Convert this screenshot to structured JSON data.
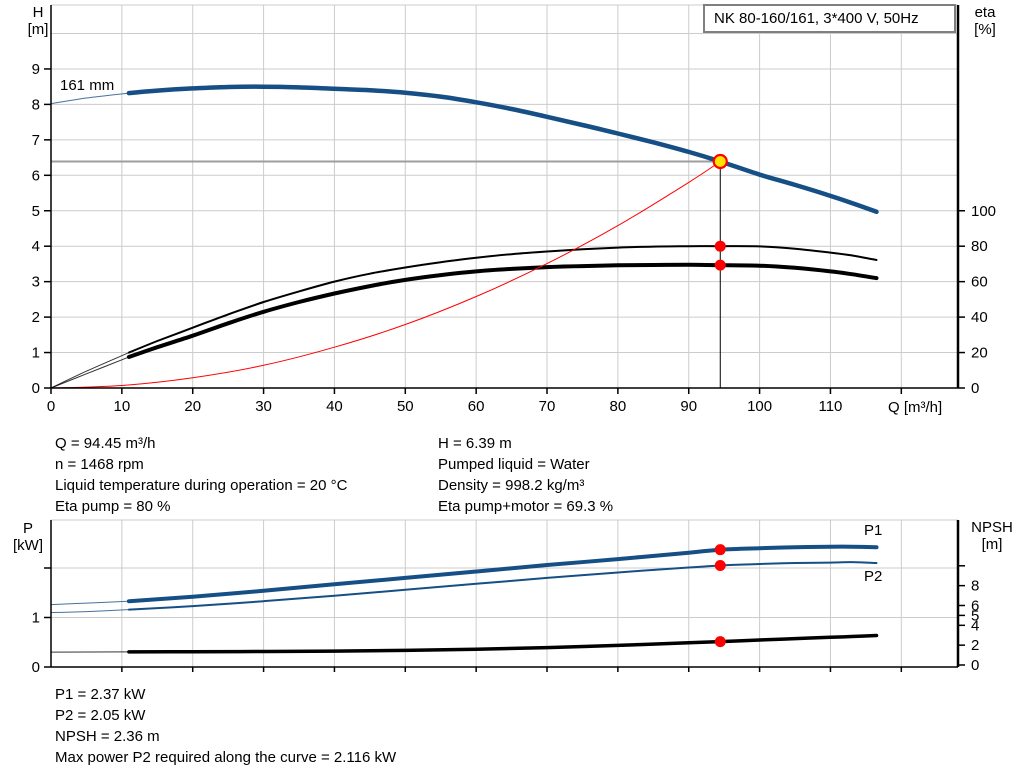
{
  "colors": {
    "curve_blue": "#164f85",
    "curve_black": "#000000",
    "red": "#ff0000",
    "duty_yellow": "#ffe400",
    "grid": "#cccccc",
    "duty_line_gray": "#9e9e9e",
    "axis": "#000000",
    "box_border": "#7f7f7f"
  },
  "top_info": {
    "left": [
      "Q = 94.45 m³/h",
      "n = 1468 rpm",
      "Liquid temperature during operation = 20 °C",
      "Eta pump = 80 %"
    ],
    "right": [
      "H = 6.39 m",
      "Pumped liquid = Water",
      "Density = 998.2 kg/m³",
      "Eta pump+motor = 69.3 %"
    ]
  },
  "bottom_info": [
    "P1 = 2.37 kW",
    "P2 = 2.05 kW",
    "NPSH = 2.36 m",
    "Max power P2 required along the curve = 2.116 kW"
  ],
  "chart_data": [
    {
      "type": "line",
      "title": "NK 80-160/161, 3*400 V, 50Hz",
      "impeller_label": "161 mm",
      "axes": {
        "x": {
          "label": "Q [m³/h]",
          "min": 0,
          "max": 128,
          "ticks": [
            0,
            10,
            20,
            30,
            40,
            50,
            60,
            70,
            80,
            90,
            100,
            110
          ],
          "unlabeled_ticks": [
            120
          ],
          "grid": [
            10,
            20,
            30,
            40,
            50,
            60,
            70,
            80,
            90,
            100,
            110,
            120
          ]
        },
        "y_left": {
          "label_lines": [
            "H",
            "[m]"
          ],
          "min": 0,
          "max": 10.8,
          "ticks": [
            0,
            1,
            2,
            3,
            4,
            5,
            6,
            7,
            8,
            9
          ],
          "grid": [
            1,
            2,
            3,
            4,
            5,
            6,
            7,
            8,
            9,
            10
          ]
        },
        "y_right": {
          "label_lines": [
            "eta",
            "[%]"
          ],
          "min": 0,
          "max": 216,
          "ticks": [
            0,
            20,
            40,
            60,
            80,
            100
          ]
        }
      },
      "series": [
        {
          "name": "qh-curve",
          "axis": "left",
          "color_key": "curve_blue",
          "width": 4.5,
          "thin_until": 11,
          "points": [
            [
              0,
              8.02
            ],
            [
              5,
              8.18
            ],
            [
              11,
              8.32
            ],
            [
              15,
              8.39
            ],
            [
              20,
              8.45
            ],
            [
              25,
              8.49
            ],
            [
              30,
              8.5
            ],
            [
              35,
              8.48
            ],
            [
              40,
              8.44
            ],
            [
              45,
              8.4
            ],
            [
              50,
              8.33
            ],
            [
              55,
              8.22
            ],
            [
              60,
              8.06
            ],
            [
              65,
              7.87
            ],
            [
              70,
              7.65
            ],
            [
              75,
              7.42
            ],
            [
              80,
              7.18
            ],
            [
              85,
              6.93
            ],
            [
              90,
              6.66
            ],
            [
              94.45,
              6.39
            ],
            [
              100,
              6.02
            ],
            [
              105,
              5.73
            ],
            [
              110,
              5.42
            ],
            [
              113,
              5.22
            ],
            [
              116.5,
              4.97
            ]
          ]
        },
        {
          "name": "eta-pump-curve",
          "axis": "right",
          "color_key": "curve_black",
          "width": 2,
          "thin_until": 11,
          "points": [
            [
              0,
              0
            ],
            [
              5,
              9.5
            ],
            [
              11,
              20
            ],
            [
              15,
              26.5
            ],
            [
              20,
              34
            ],
            [
              25,
              41.5
            ],
            [
              30,
              48.5
            ],
            [
              35,
              54.5
            ],
            [
              40,
              60
            ],
            [
              45,
              64.5
            ],
            [
              50,
              68
            ],
            [
              55,
              71
            ],
            [
              60,
              73.5
            ],
            [
              65,
              75.5
            ],
            [
              70,
              77
            ],
            [
              75,
              78.3
            ],
            [
              80,
              79.2
            ],
            [
              85,
              79.8
            ],
            [
              90,
              80
            ],
            [
              94.45,
              80
            ],
            [
              100,
              79.9
            ],
            [
              105,
              78.6
            ],
            [
              110,
              76.4
            ],
            [
              113,
              74.8
            ],
            [
              116.5,
              72.2
            ]
          ]
        },
        {
          "name": "eta-pump-motor-curve",
          "axis": "right",
          "color_key": "curve_black",
          "width": 4,
          "thin_until": 11,
          "points": [
            [
              0,
              0
            ],
            [
              5,
              8
            ],
            [
              11,
              17.5
            ],
            [
              15,
              23
            ],
            [
              20,
              29.5
            ],
            [
              25,
              36.5
            ],
            [
              30,
              43
            ],
            [
              35,
              48.5
            ],
            [
              40,
              53.3
            ],
            [
              45,
              57.5
            ],
            [
              50,
              61
            ],
            [
              55,
              63.7
            ],
            [
              60,
              65.8
            ],
            [
              65,
              67.2
            ],
            [
              70,
              68.2
            ],
            [
              75,
              68.8
            ],
            [
              80,
              69.2
            ],
            [
              85,
              69.4
            ],
            [
              90,
              69.5
            ],
            [
              94.45,
              69.3
            ],
            [
              100,
              69
            ],
            [
              105,
              67.8
            ],
            [
              110,
              65.8
            ],
            [
              113,
              64.2
            ],
            [
              116.5,
              62
            ]
          ]
        },
        {
          "name": "system-curve",
          "axis": "left",
          "color_key": "red",
          "width": 1,
          "thin_until": null,
          "points": [
            [
              0,
              0
            ],
            [
              10,
              0.07
            ],
            [
              20,
              0.29
            ],
            [
              30,
              0.64
            ],
            [
              40,
              1.15
            ],
            [
              50,
              1.79
            ],
            [
              60,
              2.58
            ],
            [
              70,
              3.51
            ],
            [
              80,
              4.58
            ],
            [
              90,
              5.8
            ],
            [
              94.45,
              6.39
            ]
          ]
        }
      ],
      "duty_point": {
        "q": 94.45,
        "h": 6.39,
        "eta_pump": 80,
        "eta_pump_motor": 69.3
      }
    },
    {
      "type": "line",
      "axes": {
        "x": {
          "min": 0,
          "max": 128,
          "grid": [
            10,
            20,
            30,
            40,
            50,
            60,
            70,
            80,
            90,
            100,
            110,
            120
          ],
          "ticks_small": [
            10,
            20,
            30,
            40,
            50,
            60,
            70,
            80,
            90,
            100,
            110,
            120
          ]
        },
        "y_left": {
          "label_lines": [
            "P",
            "[kW]"
          ],
          "min": 0,
          "max": 2.97,
          "ticks": [
            0,
            1
          ],
          "unlabeled_ticks": [
            2
          ],
          "grid": [
            1,
            2
          ]
        },
        "y_right": {
          "label_lines": [
            "NPSH",
            "[m]"
          ],
          "min": 0,
          "max": 14.6,
          "ticks": [
            0,
            2,
            4,
            5,
            6,
            8
          ],
          "unlabeled_ticks": [
            10
          ]
        }
      },
      "series": [
        {
          "name": "p1-curve",
          "label": "P1",
          "axis": "left",
          "color_key": "curve_blue",
          "width": 4,
          "thin_until": 11,
          "points": [
            [
              0,
              1.26
            ],
            [
              5,
              1.29
            ],
            [
              11,
              1.33
            ],
            [
              20,
              1.42
            ],
            [
              30,
              1.54
            ],
            [
              40,
              1.67
            ],
            [
              50,
              1.8
            ],
            [
              60,
              1.93
            ],
            [
              70,
              2.06
            ],
            [
              80,
              2.18
            ],
            [
              90,
              2.31
            ],
            [
              94.45,
              2.37
            ],
            [
              100,
              2.4
            ],
            [
              105,
              2.42
            ],
            [
              110,
              2.43
            ],
            [
              113,
              2.43
            ],
            [
              116.5,
              2.42
            ]
          ]
        },
        {
          "name": "p2-curve",
          "label": "P2",
          "axis": "left",
          "color_key": "curve_blue",
          "width": 2,
          "thin_until": 11,
          "points": [
            [
              0,
              1.1
            ],
            [
              5,
              1.12
            ],
            [
              11,
              1.16
            ],
            [
              20,
              1.23
            ],
            [
              30,
              1.33
            ],
            [
              40,
              1.44
            ],
            [
              50,
              1.56
            ],
            [
              60,
              1.68
            ],
            [
              70,
              1.8
            ],
            [
              80,
              1.91
            ],
            [
              90,
              2.01
            ],
            [
              94.45,
              2.05
            ],
            [
              100,
              2.08
            ],
            [
              105,
              2.1
            ],
            [
              110,
              2.11
            ],
            [
              113,
              2.12
            ],
            [
              116.5,
              2.1
            ]
          ]
        },
        {
          "name": "npsh-curve",
          "axis": "right",
          "color_key": "curve_black",
          "width": 3.5,
          "thin_until": 11,
          "points": [
            [
              0,
              1.3
            ],
            [
              11,
              1.32
            ],
            [
              20,
              1.34
            ],
            [
              30,
              1.36
            ],
            [
              40,
              1.4
            ],
            [
              50,
              1.47
            ],
            [
              60,
              1.58
            ],
            [
              70,
              1.75
            ],
            [
              80,
              1.98
            ],
            [
              90,
              2.24
            ],
            [
              94.45,
              2.36
            ],
            [
              100,
              2.52
            ],
            [
              105,
              2.66
            ],
            [
              110,
              2.79
            ],
            [
              113,
              2.87
            ],
            [
              116.5,
              2.97
            ]
          ]
        }
      ],
      "duty_markers": {
        "q": 94.45,
        "p1": 2.37,
        "p2": 2.05,
        "npsh": 2.36
      }
    }
  ]
}
